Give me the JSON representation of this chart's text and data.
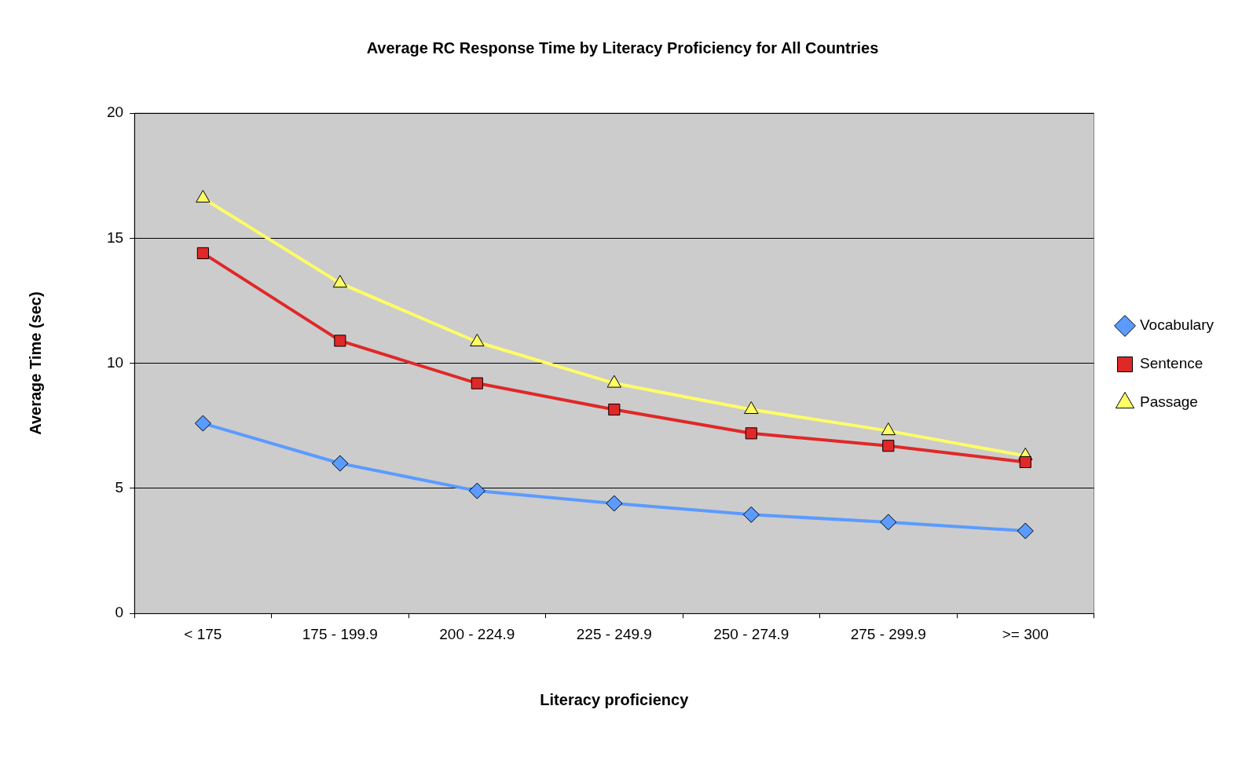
{
  "chart_data": {
    "type": "line",
    "title": "Average RC Response Time by Literacy Proficiency for All Countries",
    "xlabel": "Literacy proficiency",
    "ylabel": "Average Time (sec)",
    "categories": [
      "< 175",
      "175 - 199.9",
      "200 - 224.9",
      "225 - 249.9",
      "250 - 274.9",
      "275 - 299.9",
      ">= 300"
    ],
    "series": [
      {
        "name": "Vocabulary",
        "color": "#5b9bff",
        "marker": "diamond",
        "values": [
          7.6,
          6.0,
          4.9,
          4.4,
          3.95,
          3.65,
          3.3
        ]
      },
      {
        "name": "Sentence",
        "color": "#e02828",
        "marker": "square",
        "values": [
          14.4,
          10.9,
          9.2,
          8.15,
          7.2,
          6.7,
          6.05
        ]
      },
      {
        "name": "Passage",
        "color": "#ffff66",
        "marker": "triangle",
        "values": [
          16.6,
          13.2,
          10.85,
          9.2,
          8.15,
          7.3,
          6.3
        ]
      }
    ],
    "ylim": [
      0,
      20
    ],
    "yticks": [
      0,
      5,
      10,
      15,
      20
    ],
    "grid": "y",
    "legend": "right",
    "line_style": "solid"
  }
}
